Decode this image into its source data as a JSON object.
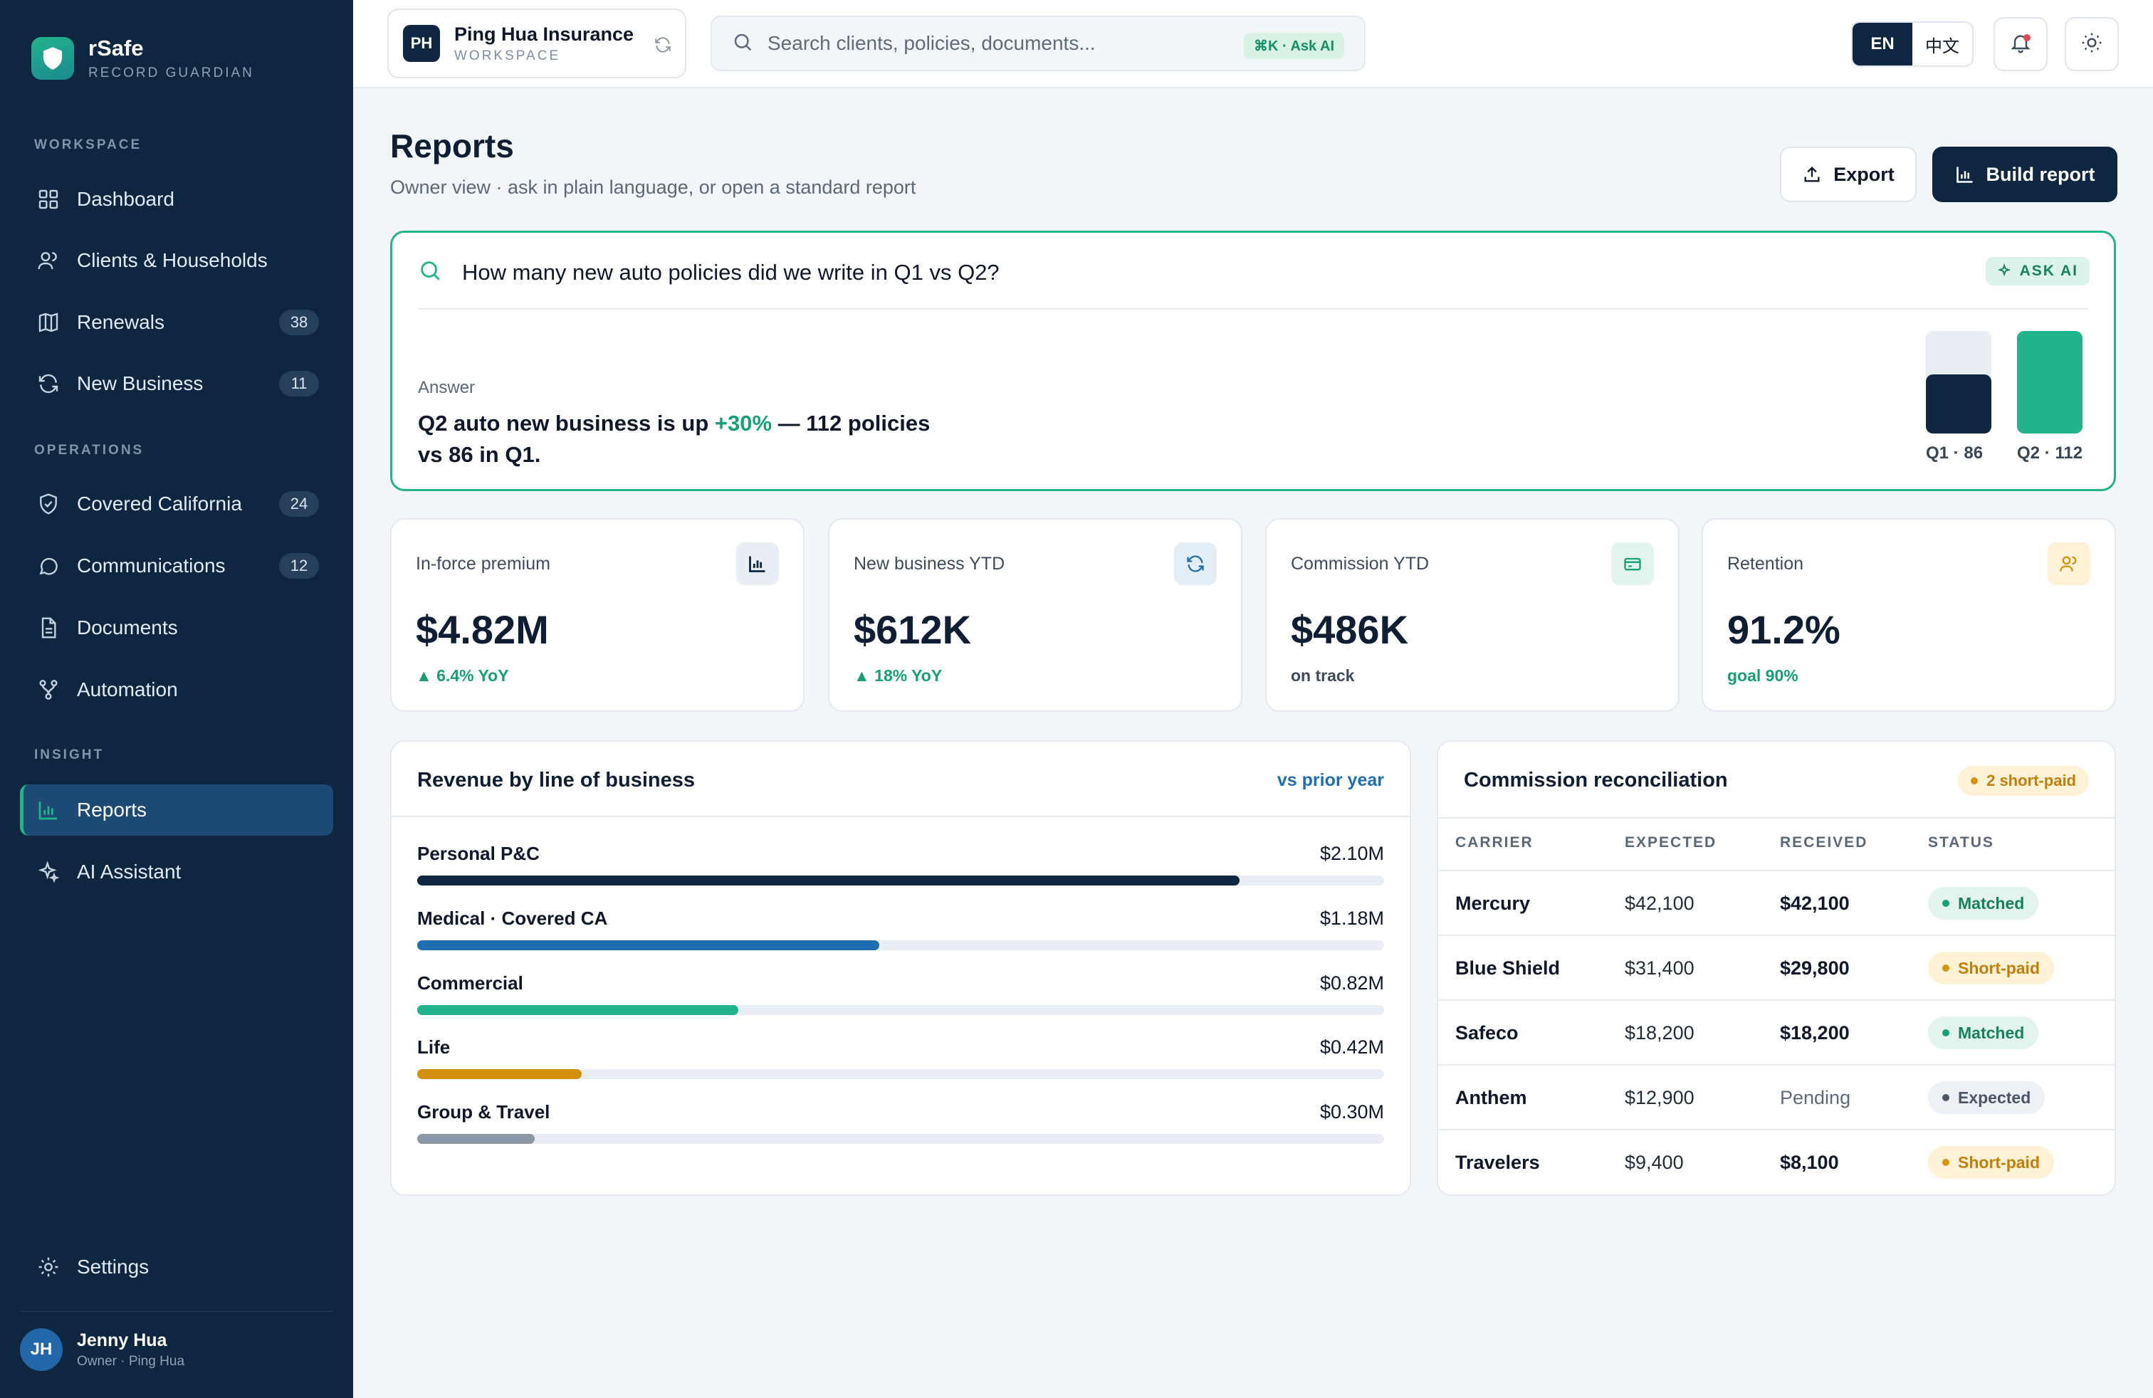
{
  "brand": {
    "name": "rSafe",
    "tagline": "RECORD GUARDIAN",
    "logo_icon": "shield-icon"
  },
  "sidebar": {
    "sections": {
      "workspace": "WORKSPACE",
      "operations": "OPERATIONS",
      "insight": "INSIGHT"
    },
    "items": [
      {
        "label": "Dashboard",
        "icon": "grid-icon"
      },
      {
        "label": "Clients & Households",
        "icon": "users-icon"
      },
      {
        "label": "Renewals",
        "icon": "map-icon",
        "badge": "38"
      },
      {
        "label": "New Business",
        "icon": "refresh-icon",
        "badge": "11"
      },
      {
        "label": "Covered California",
        "icon": "shield-check-icon",
        "badge": "24"
      },
      {
        "label": "Communications",
        "icon": "chat-icon",
        "badge": "12"
      },
      {
        "label": "Documents",
        "icon": "document-icon"
      },
      {
        "label": "Automation",
        "icon": "workflow-icon"
      },
      {
        "label": "Reports",
        "icon": "bar-chart-icon",
        "active": true
      },
      {
        "label": "AI Assistant",
        "icon": "sparkle-icon"
      }
    ],
    "settings_label": "Settings",
    "user": {
      "initials": "JH",
      "name": "Jenny Hua",
      "role": "Owner · Ping Hua"
    }
  },
  "topbar": {
    "workspace": {
      "initials": "PH",
      "name": "Ping Hua Insurance",
      "sub": "WORKSPACE"
    },
    "search": {
      "placeholder": "Search clients, policies, documents...",
      "shortcut": "⌘K · Ask AI"
    },
    "lang": {
      "en": "EN",
      "zh": "中文",
      "selected": "EN"
    }
  },
  "header": {
    "title": "Reports",
    "subtitle": "Owner view · ask in plain language, or open a standard report",
    "export_label": "Export",
    "build_label": "Build report"
  },
  "ask": {
    "question": "How many new auto policies did we write in Q1 vs Q2?",
    "pill": "ASK AI",
    "answer_label": "Answer",
    "answer_pre": "Q2 auto new business is up ",
    "answer_up": "+30%",
    "answer_post": " — 112 policies vs 86 in Q1.",
    "bars": [
      {
        "label": "Q1 · 86",
        "value": 86,
        "color": "#0f2640"
      },
      {
        "label": "Q2 · 112",
        "value": 112,
        "color": "#22b38c"
      }
    ],
    "bars_max": 112
  },
  "kpis": [
    {
      "label": "In-force premium",
      "value": "$4.82M",
      "delta": "▲ 6.4% YoY",
      "delta_color": "#17a077",
      "icon": "bar-chart-icon",
      "icon_bg": "#e9eef4"
    },
    {
      "label": "New business YTD",
      "value": "$612K",
      "delta": "▲ 18% YoY",
      "delta_color": "#17a077",
      "icon": "refresh-icon",
      "icon_bg": "#e4eef7"
    },
    {
      "label": "Commission YTD",
      "value": "$486K",
      "delta": "on track",
      "delta_color": "#3e4b5c",
      "icon": "credit-card-icon",
      "icon_bg": "#e3f4ec"
    },
    {
      "label": "Retention",
      "value": "91.2%",
      "delta": "goal 90%",
      "delta_color": "#17a077",
      "icon": "users-icon",
      "icon_bg": "#fdf1d6"
    }
  ],
  "revenue": {
    "title": "Revenue by line of business",
    "link": "vs prior year",
    "max": 2.47,
    "rows": [
      {
        "name": "Personal P&C",
        "value": "$2.10M",
        "amount": 2.1,
        "color": "#0f2640"
      },
      {
        "name": "Medical · Covered CA",
        "value": "$1.18M",
        "amount": 1.18,
        "color": "#1f6fb0"
      },
      {
        "name": "Commercial",
        "value": "$0.82M",
        "amount": 0.82,
        "color": "#22b38c"
      },
      {
        "name": "Life",
        "value": "$0.42M",
        "amount": 0.42,
        "color": "#d4900c"
      },
      {
        "name": "Group & Travel",
        "value": "$0.30M",
        "amount": 0.3,
        "color": "#8b97a5"
      }
    ]
  },
  "commission": {
    "title": "Commission reconciliation",
    "pill": "2 short-paid",
    "headers": [
      "CARRIER",
      "EXPECTED",
      "RECEIVED",
      "STATUS"
    ],
    "rows": [
      {
        "carrier": "Mercury",
        "expected": "$42,100",
        "received": "$42,100",
        "status": "Matched",
        "kind": "matched"
      },
      {
        "carrier": "Blue Shield",
        "expected": "$31,400",
        "received": "$29,800",
        "status": "Short-paid",
        "kind": "short"
      },
      {
        "carrier": "Safeco",
        "expected": "$18,200",
        "received": "$18,200",
        "status": "Matched",
        "kind": "matched"
      },
      {
        "carrier": "Anthem",
        "expected": "$12,900",
        "received": "Pending",
        "status": "Expected",
        "kind": "expected"
      },
      {
        "carrier": "Travelers",
        "expected": "$9,400",
        "received": "$8,100",
        "status": "Short-paid",
        "kind": "short"
      }
    ]
  }
}
